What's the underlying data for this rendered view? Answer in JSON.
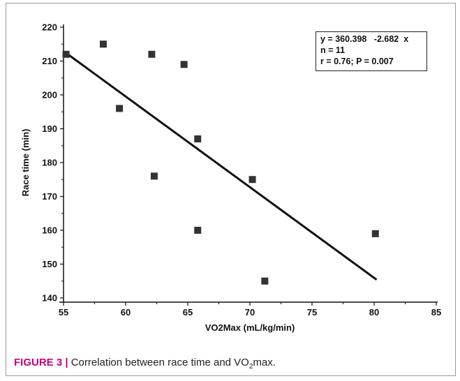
{
  "chart_data": {
    "type": "scatter",
    "xlabel": "VO2Max (mL/kg/min)",
    "ylabel": "Race time (min)",
    "xlim": [
      55,
      85
    ],
    "ylim": [
      140,
      220
    ],
    "xticks": [
      55,
      60,
      65,
      70,
      75,
      80,
      85
    ],
    "yticks": [
      140,
      150,
      160,
      170,
      180,
      190,
      200,
      210,
      220
    ],
    "points": [
      {
        "x": 55.2,
        "y": 212
      },
      {
        "x": 58.2,
        "y": 215
      },
      {
        "x": 59.5,
        "y": 196
      },
      {
        "x": 62.1,
        "y": 212
      },
      {
        "x": 62.3,
        "y": 176
      },
      {
        "x": 64.7,
        "y": 209
      },
      {
        "x": 65.8,
        "y": 187
      },
      {
        "x": 65.8,
        "y": 160
      },
      {
        "x": 70.2,
        "y": 175
      },
      {
        "x": 71.2,
        "y": 145
      },
      {
        "x": 80.1,
        "y": 159
      }
    ],
    "regression": {
      "x": [
        55.2,
        80.2
      ],
      "y": [
        212.4,
        145.4
      ]
    },
    "annotation": [
      "y = 360.398   -2.682  x",
      "n = 11",
      "r = 0.76; P = 0.007"
    ]
  },
  "caption": {
    "label": "FIGURE 3 |",
    "text_before": " Correlation between race time and VO",
    "subscript": "2",
    "text_after": "max."
  },
  "colors": {
    "marker": "#333333",
    "line": "#111111",
    "caption_label": "#c4007a"
  }
}
